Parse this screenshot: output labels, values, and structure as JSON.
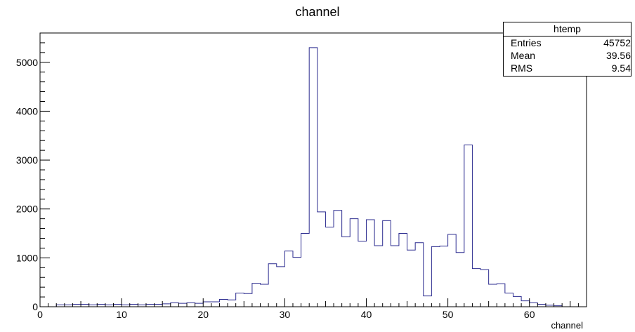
{
  "chart_data": {
    "type": "bar",
    "title": "channel",
    "xlabel": "channel",
    "ylabel": "",
    "xlim": [
      0,
      67
    ],
    "ylim": [
      0,
      5600
    ],
    "x_ticks": [
      0,
      10,
      20,
      30,
      40,
      50,
      60
    ],
    "y_ticks": [
      0,
      1000,
      2000,
      3000,
      4000,
      5000
    ],
    "bin_width": 1,
    "bin_start": 2,
    "values": [
      40,
      40,
      50,
      50,
      40,
      50,
      40,
      50,
      40,
      50,
      40,
      50,
      50,
      60,
      80,
      70,
      80,
      70,
      100,
      100,
      150,
      140,
      280,
      270,
      480,
      460,
      880,
      820,
      1140,
      1010,
      1500,
      5300,
      1940,
      1630,
      1970,
      1430,
      1800,
      1340,
      1780,
      1250,
      1760,
      1250,
      1500,
      1160,
      1310,
      220,
      1230,
      1240,
      1480,
      1110,
      3310,
      780,
      760,
      460,
      470,
      280,
      210,
      120,
      80,
      50,
      30,
      20
    ],
    "grid": false,
    "line_color": "#2b2b8f",
    "stats": {
      "title": "htemp",
      "rows": [
        {
          "label": "Entries",
          "value": "45752"
        },
        {
          "label": "Mean",
          "value": "39.56"
        },
        {
          "label": "RMS",
          "value": "9.54"
        }
      ]
    }
  }
}
